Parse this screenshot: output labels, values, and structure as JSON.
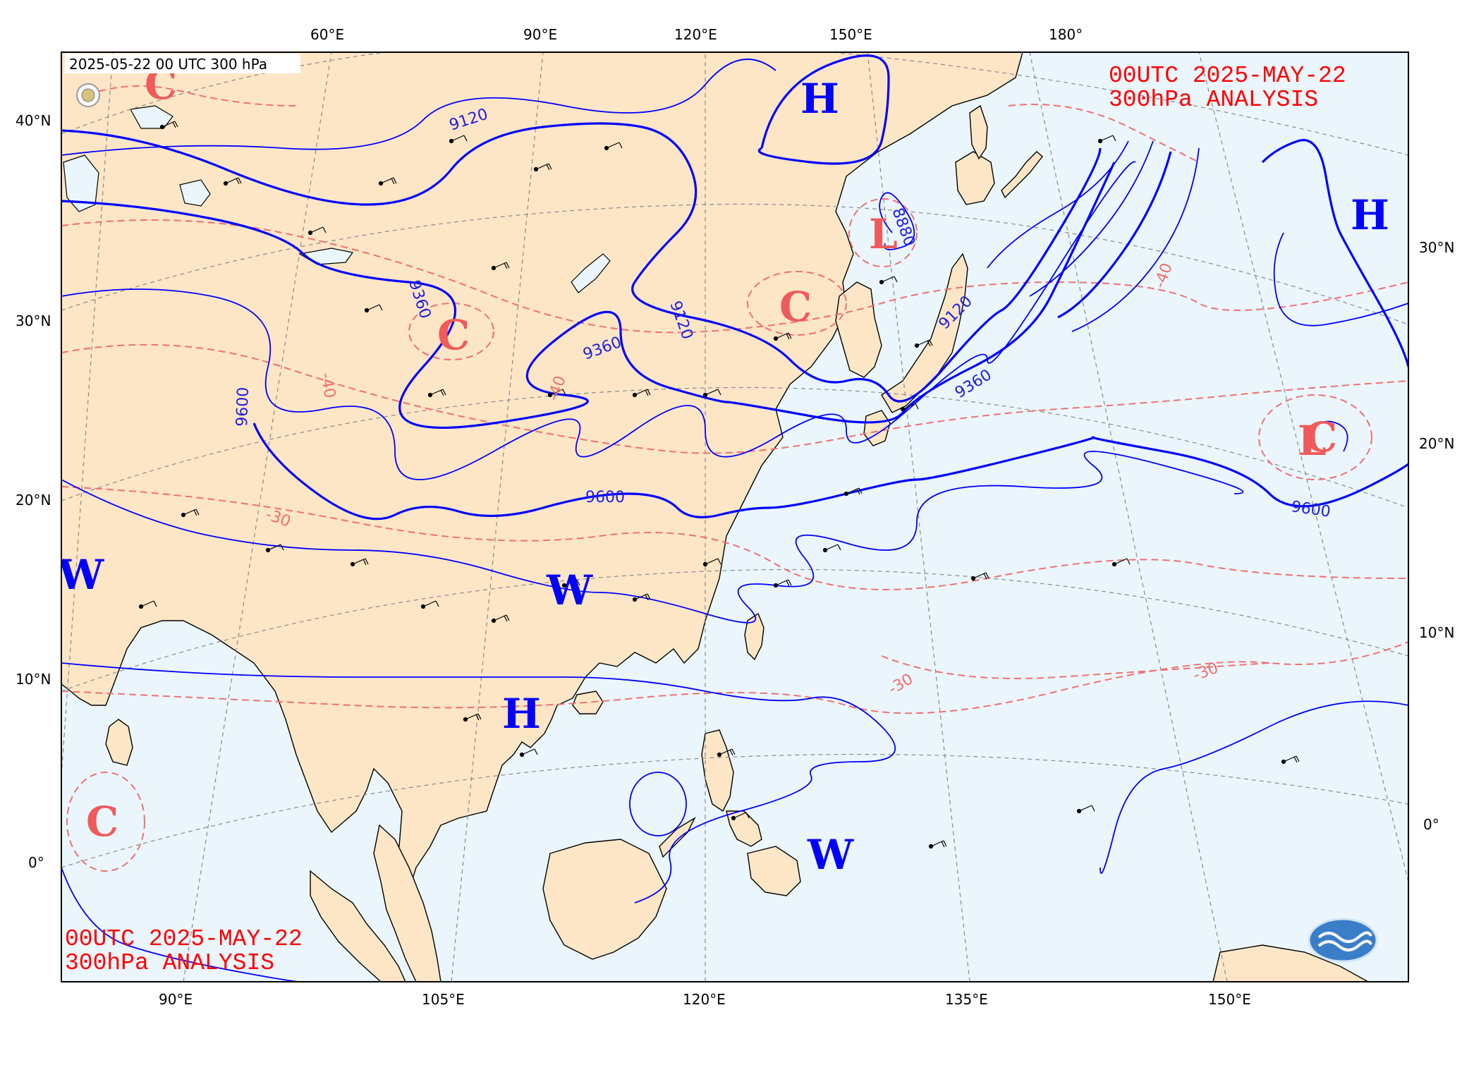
{
  "header_label": "2025-05-22 00 UTC 300 hPa",
  "annotation_top": {
    "line1": "00UTC  2025-MAY-22",
    "line2": "300hPa ANALYSIS"
  },
  "annotation_bottom": {
    "line1": "00UTC  2025-MAY-22",
    "line2": "300hPa ANALYSIS"
  },
  "top_lon_labels": [
    "60°E",
    "90°E",
    "120°E",
    "150°E",
    "180°"
  ],
  "bottom_lon_labels": [
    "90°E",
    "105°E",
    "120°E",
    "135°E",
    "150°E"
  ],
  "left_lat_labels": [
    "40°N",
    "30°N",
    "20°N",
    "10°N",
    "0°"
  ],
  "right_lat_labels": [
    "30°N",
    "20°N",
    "10°N",
    "0°"
  ],
  "height_contour_labels": [
    "9120",
    "9360",
    "9600",
    "9120",
    "9360",
    "9600",
    "9120",
    "9360",
    "9600",
    "8880"
  ],
  "temperature_contour_labels": [
    "-40",
    "-40",
    "-30",
    "-30",
    "-30",
    "-40"
  ],
  "systems": [
    {
      "id": "h-north-japan-sea",
      "label": "H",
      "color": "blue"
    },
    {
      "id": "h-east-pacific",
      "label": "H",
      "color": "blue"
    },
    {
      "id": "h-south-china-sea",
      "label": "H",
      "color": "blue"
    },
    {
      "id": "w-west",
      "label": "W",
      "color": "blue"
    },
    {
      "id": "w-south-china",
      "label": "W",
      "color": "blue"
    },
    {
      "id": "w-philippine-sea",
      "label": "W",
      "color": "blue"
    },
    {
      "id": "l-korea",
      "label": "L",
      "color": "red"
    },
    {
      "id": "c-northwest",
      "label": "C",
      "color": "red"
    },
    {
      "id": "c-tibet",
      "label": "C",
      "color": "red"
    },
    {
      "id": "c-yellow-sea",
      "label": "C",
      "color": "red"
    },
    {
      "id": "c-east-pacific",
      "label": "C",
      "color": "red"
    },
    {
      "id": "c-indian-ocean",
      "label": "C",
      "color": "red"
    },
    {
      "id": "l-east-pacific",
      "label": "L",
      "color": "red"
    }
  ],
  "colors": {
    "land": "#fde6c6",
    "ocean": "#eaf6fc",
    "height_contour": "#0000ff",
    "temperature_contour": "#f06e6e",
    "annotation": "#ff0000"
  }
}
